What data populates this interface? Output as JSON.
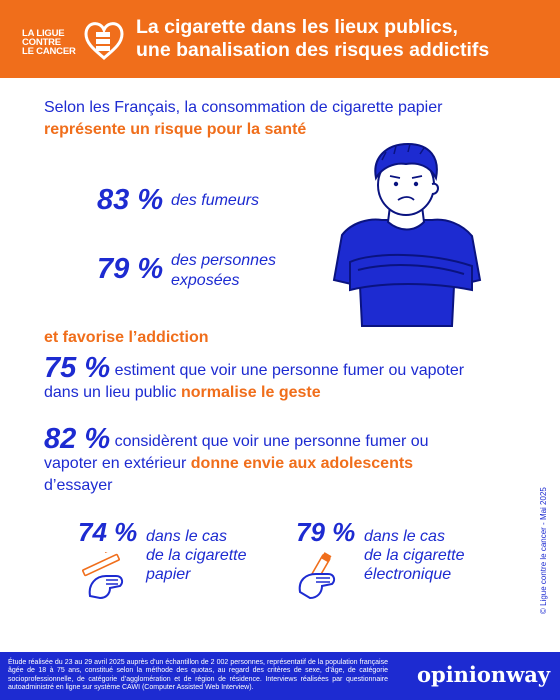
{
  "header": {
    "logo_lines": [
      "LA LIGUE",
      "CONTRE",
      "LE CANCER"
    ],
    "title_line1": "La cigarette dans les lieux publics,",
    "title_line2": "une banalisation des risques addictifs"
  },
  "section1": {
    "intro": "Selon les Français, la consommation de cigarette papier",
    "intro_highlight": "représente un risque pour la santé",
    "stats": [
      {
        "value": "83 %",
        "label_line1": "des fumeurs",
        "label_line2": ""
      },
      {
        "value": "79 %",
        "label_line1": "des personnes",
        "label_line2": "exposées"
      }
    ]
  },
  "section2": {
    "heading": "et favorise l’addiction",
    "stat1": {
      "value": "75 %",
      "text1": "estiment que voir une personne fumer ou vapoter",
      "text2": "dans un lieu public",
      "highlight": "normalise le geste"
    },
    "stat2": {
      "value": "82 %",
      "text1": "considèrent que voir une personne fumer ou",
      "text2": "vapoter en extérieur",
      "highlight": "donne envie aux adolescents",
      "text3": "d’essayer"
    },
    "sub": [
      {
        "value": "74 %",
        "label": [
          "dans le cas",
          "de la cigarette",
          "papier"
        ],
        "icon": "hand-cigarette-icon"
      },
      {
        "value": "79 %",
        "label": [
          "dans le cas",
          "de la cigarette",
          "électronique"
        ],
        "icon": "hand-vape-icon"
      }
    ]
  },
  "credit": "© Ligue contre le cancer - Mai 2025",
  "footer": {
    "note": "Étude réalisée du 23 au 29 avril 2025 auprès d’un échantillon de 2 002 personnes, représentatif de la population française âgée de 18 à 75 ans, constitué selon la méthode des quotas, au regard des critères de sexe, d’âge, de catégorie socioprofessionnelle, de catégorie d’agglomération et de région de résidence. Interviews réalisées par questionnaire autoadministré en ligne sur système CAWI (Computer Assisted Web Interview).",
    "brand": "opinionway"
  },
  "colors": {
    "orange": "#f06e1b",
    "blue": "#1d2bd1"
  }
}
